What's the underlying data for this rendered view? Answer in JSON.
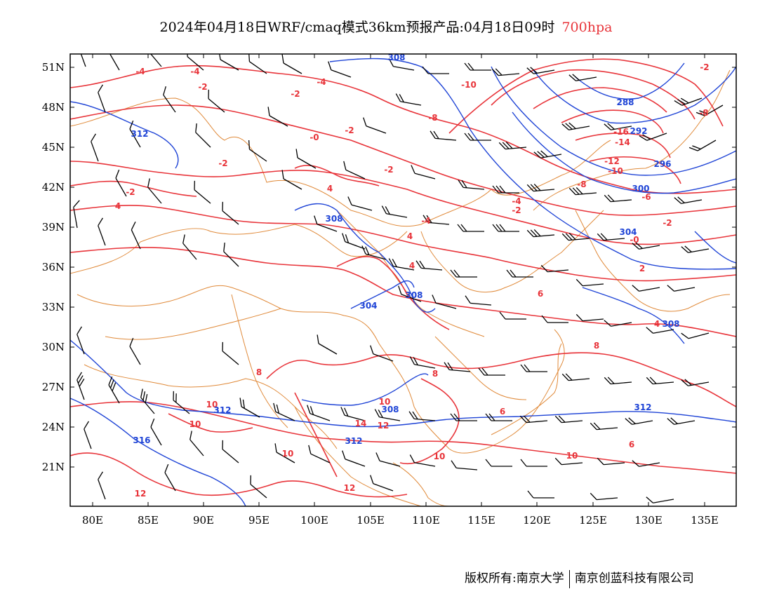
{
  "title": {
    "main": "2024年04月18日WRF/cmaq模式36km预报产品:04月18日09时",
    "level": "700hpa"
  },
  "axes": {
    "lat_labels": [
      "51N",
      "48N",
      "45N",
      "42N",
      "39N",
      "36N",
      "33N",
      "30N",
      "27N",
      "24N",
      "21N"
    ],
    "lon_labels": [
      "80E",
      "85E",
      "90E",
      "95E",
      "100E",
      "105E",
      "110E",
      "115E",
      "120E",
      "125E",
      "130E",
      "135E"
    ]
  },
  "contour_labels": {
    "temperature": [
      "-4",
      "-4",
      "-2",
      "-2",
      "-4",
      "-10",
      "-8",
      "-2",
      "-2",
      "-0",
      "-2",
      "-2",
      "-4",
      "-2",
      "-2",
      "-16",
      "-14",
      "-12",
      "-10",
      "-8",
      "-6",
      "-4",
      "-2",
      "-0",
      "-8",
      "4",
      "4",
      "4",
      "4",
      "2",
      "6",
      "8",
      "8",
      "6",
      "8",
      "10",
      "10",
      "10",
      "12",
      "14",
      "12",
      "10",
      "10",
      "12",
      "6",
      "10",
      "4"
    ],
    "geopotential": [
      "308",
      "312",
      "288",
      "292",
      "296",
      "300",
      "304",
      "308",
      "308",
      "304",
      "308",
      "312",
      "312",
      "316",
      "312",
      "308"
    ]
  },
  "colors": {
    "temperature": "#e8343a",
    "geopotential": "#1f44d6",
    "boundaries": "#e08a3a",
    "wind": "#000000",
    "level_text": "#e8343a"
  },
  "footer": {
    "left": "版权所有:南京大学",
    "right": "南京创蓝科技有限公司"
  }
}
